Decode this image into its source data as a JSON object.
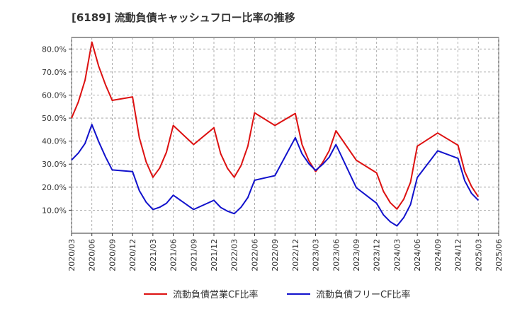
{
  "chart_data": {
    "type": "line",
    "title": "[6189]  流動負債キャッシュフロー比率の推移",
    "xlabel": "",
    "ylabel": "",
    "ylim": [
      0,
      0.85
    ],
    "y_ticks": [
      0.1,
      0.2,
      0.3,
      0.4,
      0.5,
      0.6,
      0.7,
      0.8
    ],
    "y_tick_labels": [
      "10.0%",
      "20.0%",
      "30.0%",
      "40.0%",
      "50.0%",
      "60.0%",
      "70.0%",
      "80.0%"
    ],
    "x_tick_labels": [
      "2020/03",
      "2020/06",
      "2020/09",
      "2020/12",
      "2021/03",
      "2021/06",
      "2021/09",
      "2021/12",
      "2022/03",
      "2022/06",
      "2022/09",
      "2022/12",
      "2023/03",
      "2023/06",
      "2023/09",
      "2023/12",
      "2024/03",
      "2024/06",
      "2024/09",
      "2024/12",
      "2025/03",
      "2025/06"
    ],
    "grid": true,
    "legend_position": "bottom",
    "x": [
      "2020/03",
      "2020/04",
      "2020/05",
      "2020/06",
      "2020/07",
      "2020/08",
      "2020/09",
      "2020/12",
      "2021/01",
      "2021/02",
      "2021/03",
      "2021/04",
      "2021/05",
      "2021/06",
      "2021/09",
      "2021/12",
      "2022/01",
      "2022/02",
      "2022/03",
      "2022/04",
      "2022/05",
      "2022/06",
      "2022/09",
      "2022/12",
      "2023/01",
      "2023/02",
      "2023/03",
      "2023/04",
      "2023/05",
      "2023/06",
      "2023/09",
      "2023/12",
      "2024/01",
      "2024/02",
      "2024/03",
      "2024/04",
      "2024/05",
      "2024/06",
      "2024/09",
      "2024/12",
      "2025/01",
      "2025/02",
      "2025/03"
    ],
    "series": [
      {
        "name": "流動負債営業CF比率",
        "color": "#dd1111",
        "values": [
          0.5,
          0.57,
          0.665,
          0.83,
          0.725,
          0.645,
          0.577,
          0.592,
          0.415,
          0.31,
          0.243,
          0.283,
          0.352,
          0.468,
          0.385,
          0.458,
          0.345,
          0.282,
          0.243,
          0.294,
          0.378,
          0.523,
          0.468,
          0.52,
          0.385,
          0.315,
          0.268,
          0.305,
          0.358,
          0.445,
          0.317,
          0.262,
          0.182,
          0.133,
          0.105,
          0.148,
          0.222,
          0.378,
          0.435,
          0.382,
          0.268,
          0.203,
          0.158
        ]
      },
      {
        "name": "流動負債フリーCF比率",
        "color": "#1111cc",
        "values": [
          0.318,
          0.348,
          0.39,
          0.472,
          0.398,
          0.332,
          0.275,
          0.268,
          0.185,
          0.135,
          0.103,
          0.113,
          0.13,
          0.165,
          0.103,
          0.143,
          0.112,
          0.096,
          0.085,
          0.113,
          0.155,
          0.23,
          0.25,
          0.415,
          0.345,
          0.302,
          0.273,
          0.298,
          0.33,
          0.385,
          0.198,
          0.13,
          0.08,
          0.05,
          0.032,
          0.068,
          0.125,
          0.242,
          0.358,
          0.325,
          0.228,
          0.173,
          0.143
        ]
      }
    ]
  }
}
